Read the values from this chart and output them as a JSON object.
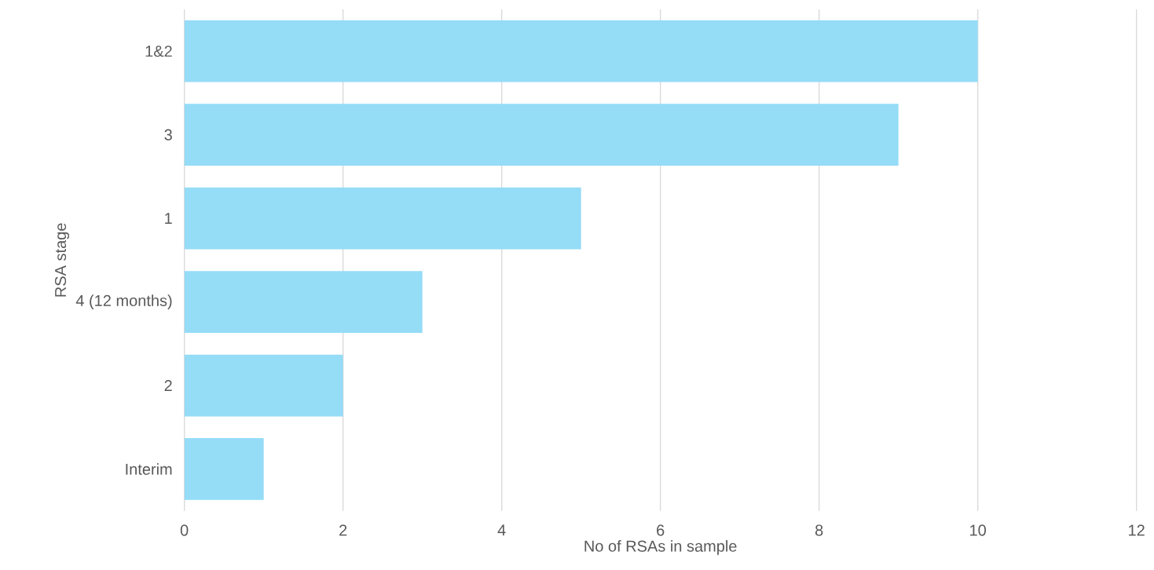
{
  "chart_data": {
    "type": "bar",
    "orientation": "horizontal",
    "xlabel": "No of RSAs in sample",
    "ylabel": "RSA stage",
    "categories": [
      "1&2",
      "3",
      "1",
      "4 (12 months)",
      "2",
      "Interim"
    ],
    "values": [
      10,
      9,
      5,
      3,
      2,
      1
    ],
    "color": "#95dcf7",
    "xlim": [
      0,
      12
    ],
    "xticks": [
      0,
      2,
      4,
      6,
      8,
      10,
      12
    ],
    "grid": "x"
  }
}
